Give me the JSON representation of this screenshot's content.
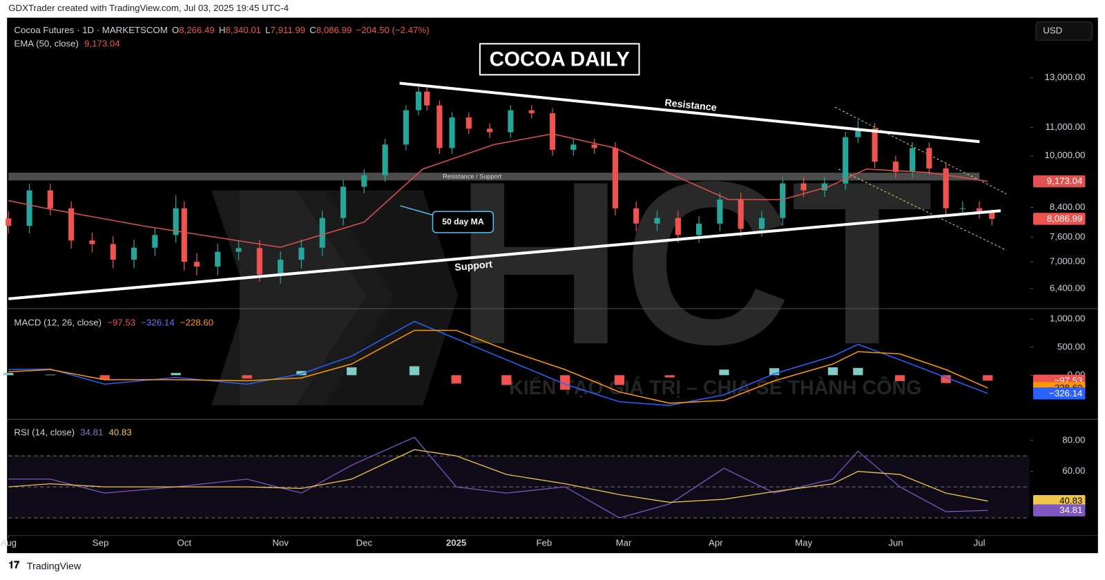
{
  "header": "GDXTrader created with TradingView.com, Jul 03, 2025 19:45 UTC-4",
  "footer": "TradingView",
  "currency": "USD",
  "annotations": {
    "title_box": "COCOA DAILY",
    "resistance": "Resistance",
    "resistance_support": "Resistance / Support",
    "ma_note": "50 day MA",
    "support": "Support"
  },
  "watermark": {
    "logo": "HCT",
    "slogan": "KIẾN TẠO GIÁ TRỊ – CHIA SẺ THÀNH CÔNG"
  },
  "chart_data": [
    {
      "type": "candlestick",
      "title": "Cocoa Futures · 1D · MARKETSCOM",
      "ohlc_legend": [
        {
          "label": "O",
          "value": "8,266.49"
        },
        {
          "label": "H",
          "value": "8,340.01"
        },
        {
          "label": "L",
          "value": "7,911.99"
        },
        {
          "label": "C",
          "value": "8,086.99"
        }
      ],
      "change": "−204.50 (−2.47%)",
      "up_color": "#26a69a",
      "down_color": "#ef5350",
      "log": true,
      "xlim": [
        0,
        244
      ],
      "ylim": [
        5980,
        15900
      ],
      "yticks": [
        {
          "value": 6400,
          "label": "6,400.00"
        },
        {
          "value": 7000,
          "label": "7,000.00"
        },
        {
          "value": 7600,
          "label": "7,600.00"
        },
        {
          "value": 8400,
          "label": "8,400.00"
        },
        {
          "value": 10000,
          "label": "10,000.00"
        },
        {
          "value": 11000,
          "label": "11,000.00"
        },
        {
          "value": 13000,
          "label": "13,000.00"
        }
      ],
      "x": [
        0,
        5,
        10,
        15,
        20,
        25,
        30,
        35,
        40,
        42,
        45,
        50,
        55,
        60,
        65,
        70,
        75,
        80,
        85,
        90,
        95,
        98,
        100,
        103,
        106,
        110,
        115,
        120,
        125,
        130,
        135,
        140,
        145,
        150,
        155,
        160,
        165,
        170,
        175,
        180,
        185,
        190,
        195,
        200,
        203,
        207,
        212,
        216,
        220,
        224,
        228,
        232,
        235
      ],
      "open": [
        8100,
        7900,
        8900,
        8380,
        7520,
        7430,
        7050,
        7340,
        7660,
        8380,
        7000,
        6890,
        7240,
        7330,
        6710,
        7050,
        7340,
        8110,
        9010,
        9360,
        10380,
        11650,
        12400,
        11840,
        10260,
        11370,
        10950,
        10820,
        11650,
        11530,
        10200,
        10380,
        10260,
        8380,
        7960,
        8110,
        7660,
        7960,
        8630,
        7820,
        8110,
        9110,
        8900,
        9110,
        10640,
        10950,
        9800,
        9470,
        10260,
        9580,
        8380,
        8380,
        8266.49
      ],
      "high": [
        8300,
        9100,
        9100,
        8580,
        7720,
        7630,
        7540,
        7860,
        8750,
        8580,
        7200,
        7440,
        7530,
        7530,
        7250,
        7540,
        8310,
        9210,
        9560,
        10580,
        11850,
        12750,
        12600,
        12040,
        11570,
        11570,
        11150,
        11850,
        11850,
        11730,
        10580,
        10580,
        10460,
        8580,
        8310,
        8310,
        8160,
        8830,
        8830,
        8310,
        9310,
        9310,
        9310,
        10840,
        11250,
        11150,
        10000,
        10460,
        10460,
        9780,
        8580,
        8580,
        8340.01
      ],
      "low": [
        7700,
        7700,
        8180,
        7320,
        7230,
        6850,
        6850,
        7140,
        7460,
        6800,
        6690,
        6690,
        7040,
        6550,
        6510,
        6850,
        7140,
        7910,
        8810,
        9160,
        10180,
        11450,
        11640,
        10060,
        10060,
        10750,
        10620,
        10620,
        11330,
        10000,
        10000,
        10060,
        8180,
        7760,
        7760,
        7460,
        7460,
        7760,
        7620,
        7620,
        7910,
        8700,
        8700,
        8910,
        10440,
        9600,
        9270,
        9270,
        9380,
        8180,
        8180,
        8100,
        7911.99
      ],
      "close": [
        7900,
        8900,
        8380,
        7520,
        7430,
        7050,
        7340,
        7660,
        8380,
        7000,
        6890,
        7240,
        7330,
        6710,
        7050,
        7340,
        8110,
        9010,
        9360,
        10380,
        11650,
        12400,
        11840,
        10260,
        11370,
        10950,
        10820,
        11650,
        11530,
        10200,
        10380,
        10260,
        8380,
        7960,
        8110,
        7660,
        7960,
        8630,
        7820,
        8110,
        9110,
        8900,
        9110,
        10640,
        10950,
        9800,
        9470,
        10260,
        9580,
        8380,
        8380,
        8291.49,
        8086.99
      ],
      "last_close_label": "8,086.99",
      "series": [
        {
          "name": "EMA (50, close)",
          "color": "#e0514f",
          "x": [
            0,
            8,
            32,
            65,
            85,
            99,
            116,
            130,
            145,
            159,
            172,
            185,
            196,
            205,
            220,
            234
          ],
          "values": [
            8600,
            8400,
            7900,
            7350,
            8000,
            9560,
            10380,
            10760,
            10260,
            9360,
            8630,
            8630,
            9010,
            9560,
            9450,
            9173.04
          ],
          "last_label": "9,173.04"
        }
      ]
    },
    {
      "type": "macd",
      "title": "MACD (12, 26, close)",
      "xlim": [
        0,
        244
      ],
      "ylim": [
        -787.5,
        1187.5
      ],
      "yticks": [
        {
          "value": 0,
          "label": "0.00"
        },
        {
          "value": 500,
          "label": "500.00"
        },
        {
          "value": 1000,
          "label": "1,000.00"
        }
      ],
      "x": [
        0,
        10,
        23,
        40,
        57,
        70,
        82,
        97,
        107,
        119,
        133,
        146,
        158,
        171,
        183,
        197,
        203,
        213,
        224,
        234
      ],
      "histogram": {
        "up_color": "#80cbc4",
        "down_color": "#ef5350",
        "values": [
          40,
          10,
          -80,
          40,
          -60,
          75,
          140,
          160,
          -150,
          -175,
          -260,
          -175,
          -40,
          100,
          125,
          140,
          130,
          -105,
          -140,
          -97.53
        ],
        "last_label": "−97.53"
      },
      "macd": {
        "color": "#2962ff",
        "values": [
          100,
          110,
          -160,
          -40,
          -160,
          25,
          340,
          960,
          650,
          275,
          -160,
          -475,
          -540,
          -350,
          25,
          340,
          550,
          275,
          -40,
          -326.14
        ],
        "last_label": "−326.14"
      },
      "signal": {
        "color": "#ff9800",
        "values": [
          60,
          100,
          -80,
          -80,
          -100,
          -50,
          200,
          800,
          800,
          450,
          100,
          -300,
          -500,
          -450,
          -100,
          200,
          420,
          380,
          100,
          -228.6
        ],
        "last_label": "−228.60"
      }
    },
    {
      "type": "rsi",
      "title": "RSI (14, close)",
      "xlim": [
        0,
        244
      ],
      "ylim": [
        18.6,
        93.6
      ],
      "yticks": [
        {
          "value": 60,
          "label": "60.00"
        },
        {
          "value": 80,
          "label": "80.00"
        }
      ],
      "bands": [
        30,
        50,
        70
      ],
      "x": [
        0,
        10,
        23,
        40,
        57,
        70,
        82,
        97,
        107,
        119,
        133,
        146,
        158,
        171,
        183,
        197,
        203,
        213,
        224,
        234
      ],
      "rsi": {
        "color": "#7e57c2",
        "values": [
          55,
          55,
          46,
          50,
          55,
          46,
          64,
          82,
          50,
          46,
          50,
          30,
          39,
          62,
          46,
          55,
          73,
          50,
          34,
          34.81
        ],
        "last_label": "34.81"
      },
      "ma": {
        "color": "#f0c64a",
        "values": [
          50,
          52,
          50,
          50,
          50,
          49,
          55,
          74,
          70,
          58,
          52,
          45,
          40,
          42,
          47,
          52,
          60,
          58,
          46,
          40.83
        ],
        "last_label": "40.83"
      },
      "xticks": [
        {
          "value": 0,
          "label": "Aug"
        },
        {
          "value": 22,
          "label": "Sep"
        },
        {
          "value": 42,
          "label": "Oct"
        },
        {
          "value": 65,
          "label": "Nov"
        },
        {
          "value": 85,
          "label": "Dec"
        },
        {
          "value": 107,
          "label": "2025"
        },
        {
          "value": 128,
          "label": "Feb"
        },
        {
          "value": 147,
          "label": "Mar"
        },
        {
          "value": 169,
          "label": "Apr"
        },
        {
          "value": 190,
          "label": "May"
        },
        {
          "value": 212,
          "label": "Jun"
        },
        {
          "value": 232,
          "label": "Jul"
        }
      ]
    }
  ]
}
